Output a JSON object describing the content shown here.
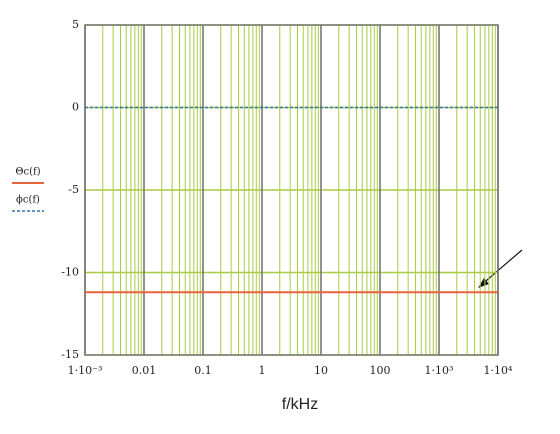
{
  "chart_data": {
    "type": "line",
    "xlabel": "f/kHz",
    "x": [
      0.001,
      10000
    ],
    "series": [
      {
        "name": "Θc(f)",
        "color": "#e8643c",
        "dash": false,
        "values": [
          -11.2,
          -11.2
        ]
      },
      {
        "name": "ϕc(f)",
        "color": "#3a6fb0",
        "dash": true,
        "values": [
          0,
          0
        ]
      }
    ],
    "xscale": "log",
    "xlim": [
      0.001,
      10000
    ],
    "xticks": [
      {
        "value": 0.001,
        "label": "1·10⁻³"
      },
      0.01,
      0.1,
      1,
      10,
      100,
      {
        "value": 1000,
        "label": "1·10³"
      },
      {
        "value": 10000,
        "label": "1·10⁴"
      }
    ],
    "ylim": [
      -15,
      5
    ],
    "yticks": [
      5,
      0,
      -5,
      -10,
      -15
    ],
    "grid": true
  }
}
